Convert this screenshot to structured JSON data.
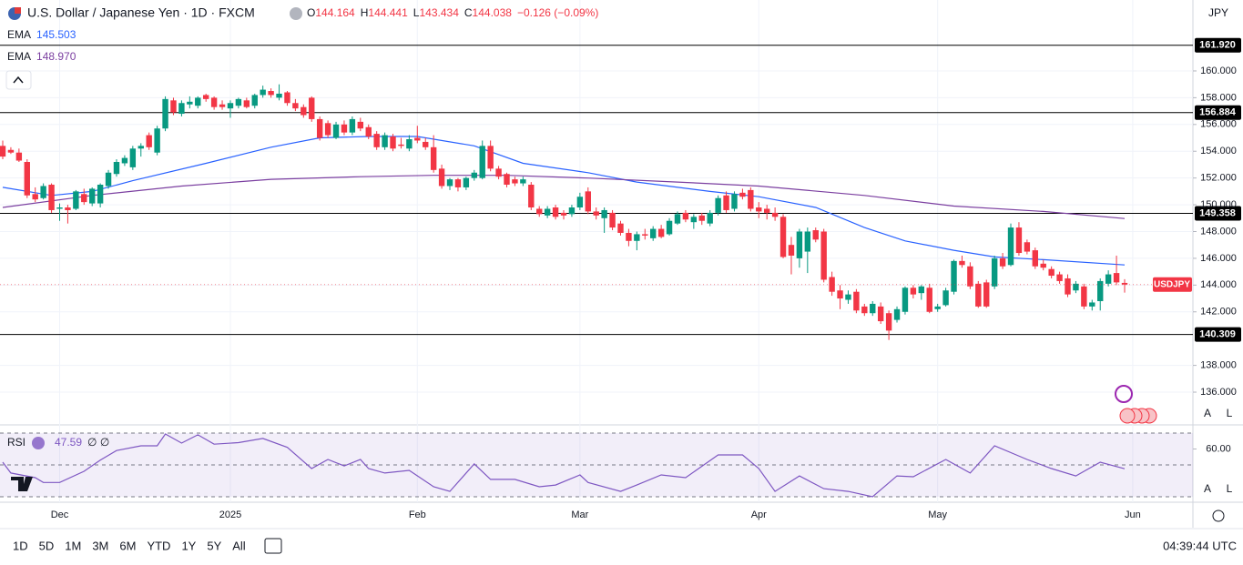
{
  "header": {
    "title": "U.S. Dollar / Japanese Yen · 1D · FXCM",
    "ohlc": [
      {
        "key": "O",
        "value": "144.164"
      },
      {
        "key": "H",
        "value": "144.441"
      },
      {
        "key": "L",
        "value": "143.434"
      },
      {
        "key": "C",
        "value": "144.038"
      }
    ],
    "change": "−0.126 (−0.09%)",
    "currency": "JPY"
  },
  "chart_data": {
    "type": "candlestick",
    "up_color": "#089981",
    "down_color": "#f23645",
    "symbol_label": "USDJPY",
    "grid": true,
    "ylim": [
      133.69,
      165.3
    ],
    "yticks": [
      {
        "value": 136,
        "label": "136.000"
      },
      {
        "value": 138,
        "label": "138.000"
      },
      {
        "value": 142,
        "label": "142.000"
      },
      {
        "value": 144,
        "label": "144.000"
      },
      {
        "value": 146,
        "label": "146.000"
      },
      {
        "value": 148,
        "label": "148.000"
      },
      {
        "value": 150,
        "label": "150.000"
      },
      {
        "value": 152,
        "label": "152.000"
      },
      {
        "value": 154,
        "label": "154.000"
      },
      {
        "value": 156,
        "label": "156.000"
      },
      {
        "value": 158,
        "label": "158.000"
      },
      {
        "value": 160,
        "label": "160.000"
      }
    ],
    "levels": [
      {
        "value": 161.92,
        "label": "161.920"
      },
      {
        "value": 156.884,
        "label": "156.884"
      },
      {
        "value": 149.358,
        "label": "149.358"
      },
      {
        "value": 140.309,
        "label": "140.309"
      }
    ],
    "xticks": [
      {
        "value": 7,
        "label": "Dec"
      },
      {
        "value": 28,
        "label": "2025"
      },
      {
        "value": 51,
        "label": "Feb"
      },
      {
        "value": 71,
        "label": "Mar"
      },
      {
        "value": 93,
        "label": "Apr"
      },
      {
        "value": 115,
        "label": "May"
      },
      {
        "value": 139,
        "label": "Jun"
      }
    ],
    "candles": [
      [
        154.4,
        154.8,
        153.4,
        153.6
      ],
      [
        154.1,
        154.3,
        153.8,
        153.9
      ],
      [
        153.9,
        154.2,
        153.2,
        153.3
      ],
      [
        153.2,
        153.4,
        150.5,
        150.7
      ],
      [
        150.8,
        151.3,
        150.2,
        150.4
      ],
      [
        150.5,
        151.6,
        150.4,
        151.4
      ],
      [
        151.5,
        151.6,
        149.4,
        149.6
      ],
      [
        149.7,
        150.1,
        148.8,
        149.8
      ],
      [
        149.8,
        150.0,
        148.6,
        149.6
      ],
      [
        149.7,
        151.1,
        149.6,
        151.0
      ],
      [
        150.8,
        151.2,
        150.0,
        150.2
      ],
      [
        150.1,
        151.3,
        149.9,
        151.2
      ],
      [
        150.1,
        151.6,
        149.8,
        151.5
      ],
      [
        151.4,
        152.6,
        151.2,
        152.4
      ],
      [
        152.3,
        153.4,
        152.1,
        153.2
      ],
      [
        153.1,
        153.7,
        152.9,
        153.5
      ],
      [
        152.8,
        154.4,
        152.6,
        154.2
      ],
      [
        154.2,
        154.6,
        153.6,
        154.4
      ],
      [
        155.2,
        155.4,
        154.1,
        154.3
      ],
      [
        153.9,
        155.9,
        153.7,
        155.7
      ],
      [
        155.7,
        158.1,
        155.5,
        157.9
      ],
      [
        157.8,
        158.0,
        156.7,
        156.9
      ],
      [
        156.8,
        157.8,
        156.6,
        157.6
      ],
      [
        157.5,
        158.1,
        157.2,
        157.7
      ],
      [
        157.4,
        158.1,
        157.2,
        158.0
      ],
      [
        158.2,
        158.3,
        157.7,
        157.9
      ],
      [
        158.0,
        158.1,
        157.1,
        157.3
      ],
      [
        157.5,
        157.8,
        157.1,
        157.3
      ],
      [
        157.2,
        157.8,
        156.5,
        157.6
      ],
      [
        157.4,
        158.0,
        157.2,
        157.9
      ],
      [
        157.8,
        158.0,
        157.2,
        157.3
      ],
      [
        157.4,
        158.3,
        157.2,
        158.2
      ],
      [
        158.2,
        158.9,
        158.0,
        158.6
      ],
      [
        158.5,
        158.7,
        158.0,
        158.2
      ],
      [
        158.0,
        159.0,
        157.8,
        158.3
      ],
      [
        158.4,
        158.5,
        157.4,
        157.6
      ],
      [
        157.6,
        157.9,
        157.0,
        157.2
      ],
      [
        157.3,
        157.5,
        156.5,
        156.7
      ],
      [
        158.0,
        158.1,
        156.2,
        156.4
      ],
      [
        156.4,
        156.6,
        154.8,
        155.0
      ],
      [
        156.1,
        156.3,
        155.0,
        155.2
      ],
      [
        155.0,
        156.2,
        154.9,
        156.0
      ],
      [
        156.0,
        156.3,
        155.2,
        155.4
      ],
      [
        155.4,
        156.6,
        155.2,
        156.4
      ],
      [
        156.2,
        156.5,
        155.5,
        155.7
      ],
      [
        155.8,
        156.0,
        154.9,
        155.1
      ],
      [
        155.3,
        155.5,
        154.1,
        154.3
      ],
      [
        154.3,
        155.4,
        154.1,
        155.2
      ],
      [
        155.1,
        155.3,
        154.0,
        154.2
      ],
      [
        154.5,
        155.0,
        154.2,
        154.4
      ],
      [
        154.2,
        155.2,
        154.0,
        154.9
      ],
      [
        155.0,
        155.9,
        154.6,
        154.8
      ],
      [
        154.7,
        155.0,
        154.1,
        154.3
      ],
      [
        154.3,
        155.2,
        152.4,
        152.6
      ],
      [
        152.7,
        153.0,
        151.2,
        151.4
      ],
      [
        151.4,
        152.0,
        151.1,
        151.9
      ],
      [
        151.9,
        152.0,
        151.0,
        151.3
      ],
      [
        151.3,
        152.1,
        151.1,
        152.0
      ],
      [
        152.0,
        152.6,
        151.8,
        152.4
      ],
      [
        152.0,
        154.8,
        151.9,
        154.4
      ],
      [
        154.4,
        154.8,
        152.5,
        152.7
      ],
      [
        152.7,
        152.9,
        151.9,
        152.1
      ],
      [
        152.3,
        152.4,
        151.3,
        151.5
      ],
      [
        151.9,
        152.1,
        151.4,
        151.6
      ],
      [
        151.6,
        152.1,
        151.4,
        151.9
      ],
      [
        151.5,
        151.7,
        149.6,
        149.8
      ],
      [
        149.7,
        149.9,
        149.1,
        149.3
      ],
      [
        149.2,
        149.9,
        149.0,
        149.7
      ],
      [
        149.8,
        150.0,
        148.9,
        149.1
      ],
      [
        149.4,
        149.6,
        148.9,
        149.2
      ],
      [
        149.3,
        150.0,
        149.1,
        149.8
      ],
      [
        149.8,
        150.9,
        149.6,
        150.6
      ],
      [
        151.0,
        151.3,
        149.3,
        149.5
      ],
      [
        149.5,
        149.8,
        148.9,
        149.2
      ],
      [
        149.0,
        149.8,
        147.9,
        149.6
      ],
      [
        149.4,
        149.6,
        148.1,
        148.3
      ],
      [
        148.6,
        148.8,
        147.7,
        147.9
      ],
      [
        147.9,
        148.2,
        146.9,
        147.3
      ],
      [
        147.3,
        148.0,
        146.6,
        147.8
      ],
      [
        147.8,
        148.2,
        147.4,
        147.7
      ],
      [
        147.5,
        148.4,
        147.3,
        148.2
      ],
      [
        148.2,
        148.5,
        147.5,
        147.6
      ],
      [
        147.8,
        149.0,
        147.7,
        148.8
      ],
      [
        148.6,
        149.5,
        148.5,
        149.3
      ],
      [
        149.4,
        149.6,
        148.7,
        148.9
      ],
      [
        148.7,
        149.3,
        148.2,
        149.1
      ],
      [
        149.2,
        149.4,
        148.5,
        148.8
      ],
      [
        148.6,
        149.6,
        148.4,
        149.4
      ],
      [
        149.4,
        150.7,
        149.2,
        150.5
      ],
      [
        150.7,
        151.0,
        149.4,
        149.6
      ],
      [
        149.7,
        151.0,
        149.5,
        150.8
      ],
      [
        150.9,
        151.2,
        150.4,
        150.6
      ],
      [
        151.1,
        151.3,
        149.5,
        149.7
      ],
      [
        149.8,
        150.2,
        149.0,
        149.5
      ],
      [
        149.7,
        150.0,
        148.9,
        149.4
      ],
      [
        149.4,
        149.8,
        148.8,
        149.1
      ],
      [
        149.1,
        149.3,
        146.0,
        146.1
      ],
      [
        147.0,
        147.6,
        144.8,
        146.2
      ],
      [
        146.0,
        148.2,
        145.3,
        148.0
      ],
      [
        146.5,
        148.3,
        144.9,
        148.0
      ],
      [
        148.1,
        148.3,
        147.2,
        147.4
      ],
      [
        148.0,
        148.2,
        144.2,
        144.4
      ],
      [
        144.6,
        145.0,
        143.2,
        143.5
      ],
      [
        143.6,
        144.0,
        142.2,
        143.0
      ],
      [
        142.9,
        143.6,
        142.6,
        143.3
      ],
      [
        143.5,
        143.7,
        141.9,
        142.1
      ],
      [
        142.4,
        142.6,
        141.7,
        141.9
      ],
      [
        141.9,
        142.8,
        141.7,
        142.6
      ],
      [
        142.4,
        142.7,
        141.1,
        141.3
      ],
      [
        141.9,
        142.1,
        139.9,
        140.6
      ],
      [
        141.4,
        142.4,
        141.2,
        142.2
      ],
      [
        142.0,
        143.9,
        141.8,
        143.8
      ],
      [
        143.8,
        144.0,
        143.0,
        143.3
      ],
      [
        143.4,
        144.0,
        142.9,
        143.9
      ],
      [
        143.8,
        144.1,
        141.9,
        142.0
      ],
      [
        142.2,
        142.6,
        142.0,
        142.4
      ],
      [
        142.5,
        143.8,
        142.4,
        143.6
      ],
      [
        143.5,
        145.9,
        143.3,
        145.8
      ],
      [
        145.8,
        146.2,
        145.3,
        145.5
      ],
      [
        145.4,
        145.7,
        143.7,
        143.9
      ],
      [
        144.1,
        144.3,
        142.3,
        142.4
      ],
      [
        144.2,
        144.4,
        142.3,
        142.4
      ],
      [
        143.9,
        146.2,
        143.7,
        146.0
      ],
      [
        146.0,
        146.4,
        145.2,
        145.4
      ],
      [
        145.5,
        148.6,
        145.4,
        148.3
      ],
      [
        148.3,
        148.7,
        146.2,
        146.4
      ],
      [
        147.2,
        147.4,
        146.3,
        146.5
      ],
      [
        146.6,
        146.8,
        145.2,
        145.4
      ],
      [
        145.6,
        145.9,
        145.1,
        145.3
      ],
      [
        145.2,
        145.4,
        144.5,
        144.7
      ],
      [
        144.8,
        145.0,
        144.1,
        144.3
      ],
      [
        144.5,
        144.8,
        143.1,
        143.3
      ],
      [
        143.6,
        144.3,
        143.4,
        144.1
      ],
      [
        143.9,
        144.1,
        142.2,
        142.4
      ],
      [
        142.4,
        142.9,
        142.1,
        142.7
      ],
      [
        142.8,
        144.5,
        142.1,
        144.3
      ],
      [
        144.1,
        145.1,
        143.9,
        144.8
      ],
      [
        144.9,
        146.2,
        144.0,
        144.2
      ],
      [
        144.164,
        144.441,
        143.434,
        144.038
      ]
    ],
    "overlays": [
      {
        "name": "EMA",
        "value_label": "145.503",
        "color": "#2962ff",
        "x": [
          0,
          6,
          11,
          16,
          25,
          33,
          39,
          45,
          51,
          58,
          64,
          72,
          78,
          87,
          93,
          100,
          106,
          111,
          117,
          122,
          128,
          138
        ],
        "values": [
          151.3,
          150.7,
          151.0,
          151.8,
          153.1,
          154.3,
          155.0,
          155.1,
          155.1,
          154.4,
          153.1,
          152.4,
          151.7,
          151.0,
          150.6,
          149.8,
          148.3,
          147.3,
          146.6,
          146.1,
          145.9,
          145.503
        ]
      },
      {
        "name": "EMA",
        "value_label": "148.970",
        "color": "#7b3fa0",
        "x": [
          0,
          11,
          22,
          33,
          44,
          53,
          62,
          72,
          83,
          93,
          106,
          117,
          128,
          138
        ],
        "values": [
          149.8,
          150.7,
          151.4,
          151.9,
          152.1,
          152.2,
          152.2,
          152.0,
          151.7,
          151.4,
          150.7,
          149.9,
          149.5,
          148.97
        ]
      }
    ],
    "rsi": {
      "name": "RSI",
      "value_label": "47.59",
      "extra": "∅ ∅",
      "color": "#7e57c2",
      "ylim": [
        26.6,
        73.4
      ],
      "yticks": [
        {
          "value": 60,
          "label": "60.00"
        }
      ],
      "levels": [
        70,
        50,
        30
      ],
      "x": [
        0,
        1,
        4,
        5,
        7,
        10,
        12,
        14,
        17,
        19,
        20,
        22,
        24,
        26,
        29,
        32,
        35,
        38,
        40,
        42,
        44,
        45,
        47,
        50,
        53,
        55,
        58,
        60,
        63,
        66,
        68,
        71,
        72,
        76,
        78,
        81,
        84,
        88,
        91,
        93,
        95,
        98,
        101,
        104,
        107,
        110,
        112,
        116,
        119,
        122,
        126,
        129,
        132,
        135,
        138
      ],
      "values": [
        51.7,
        44.9,
        42,
        39,
        39,
        46,
        53,
        59,
        62,
        62,
        69.4,
        63.7,
        68.9,
        63,
        64,
        66.6,
        61,
        47.7,
        53.4,
        49.4,
        53.4,
        47.7,
        44.9,
        46.6,
        36.3,
        33.4,
        50.6,
        40.9,
        40.9,
        36.3,
        37.4,
        43.7,
        39,
        33.4,
        37.4,
        43.7,
        42,
        56.3,
        56.3,
        47.7,
        33.4,
        43.1,
        35.1,
        33.4,
        30,
        43.1,
        42.6,
        53.4,
        44.9,
        62,
        53.4,
        47.7,
        43.1,
        51.7,
        47.59
      ]
    }
  },
  "scale_buttons": [
    "A",
    "L"
  ],
  "toolbar": {
    "ranges": [
      "1D",
      "5D",
      "1M",
      "3M",
      "6M",
      "YTD",
      "1Y",
      "5Y",
      "All"
    ],
    "clock": "04:39:44 UTC"
  }
}
